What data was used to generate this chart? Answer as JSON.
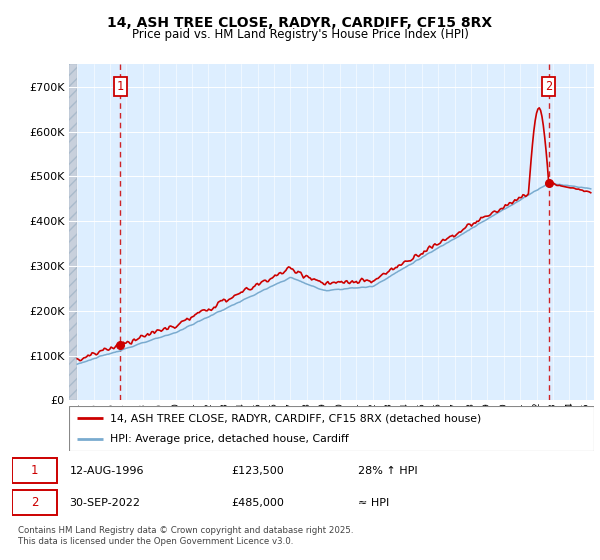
{
  "title": "14, ASH TREE CLOSE, RADYR, CARDIFF, CF15 8RX",
  "subtitle": "Price paid vs. HM Land Registry's House Price Index (HPI)",
  "legend_line1": "14, ASH TREE CLOSE, RADYR, CARDIFF, CF15 8RX (detached house)",
  "legend_line2": "HPI: Average price, detached house, Cardiff",
  "point1_date": "12-AUG-1996",
  "point1_price": "£123,500",
  "point1_hpi": "28% ↑ HPI",
  "point1_year": 1996.62,
  "point1_value": 123500,
  "point2_date": "30-SEP-2022",
  "point2_price": "£485,000",
  "point2_hpi": "≈ HPI",
  "point2_year": 2022.75,
  "point2_value": 485000,
  "footnote": "Contains HM Land Registry data © Crown copyright and database right 2025.\nThis data is licensed under the Open Government Licence v3.0.",
  "red_color": "#cc0000",
  "blue_color": "#7aabcf",
  "background_plot": "#ddeeff",
  "hatch_color": "#c8d0dc",
  "ylim": [
    0,
    750000
  ],
  "xlim_start": 1993.5,
  "xlim_end": 2025.5,
  "yticks": [
    0,
    100000,
    200000,
    300000,
    400000,
    500000,
    600000,
    700000
  ]
}
